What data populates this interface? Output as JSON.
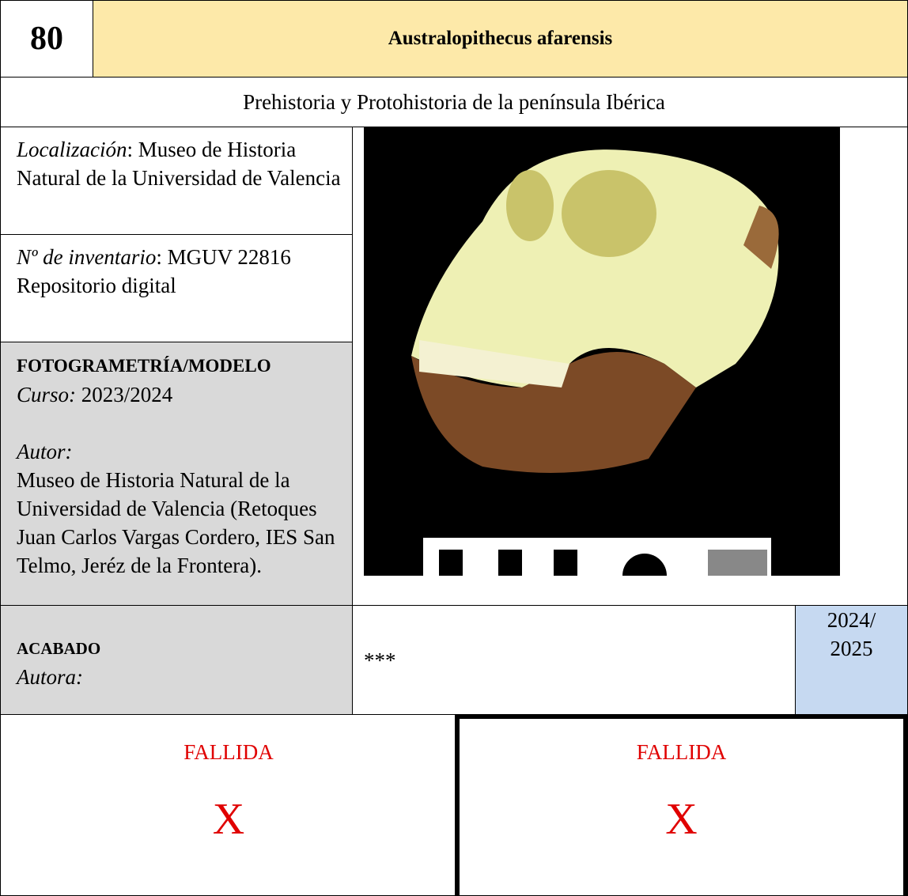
{
  "header": {
    "number": "80",
    "title": "Australopithecus afarensis"
  },
  "subtitle": "Prehistoria y Protohistoria de la península Ibérica",
  "location": {
    "label": "Localización",
    "text": ": Museo de Historia Natural de la Universidad de Valencia"
  },
  "inventory": {
    "label": "Nº de inventario",
    "text": ": MGUV 22816",
    "repository": "Repositorio digital"
  },
  "photogrammetry": {
    "heading": "FOTOGRAMETRÍA/MODELO",
    "course_label": "Curso:",
    "course": " 2023/2024",
    "author_label": "Autor:",
    "author": "Museo de Historia Natural de la Universidad de Valencia (Retoques Juan Carlos Vargas Cordero, IES San Telmo, Jeréz de la Frontera)."
  },
  "finish": {
    "heading": "ACABADO",
    "author_label": "Autora:",
    "stars": "***",
    "year": "2024/ 2025"
  },
  "failed": [
    {
      "status": "FALLIDA",
      "mark": "X"
    },
    {
      "status": "FALLIDA",
      "mark": "X"
    }
  ]
}
